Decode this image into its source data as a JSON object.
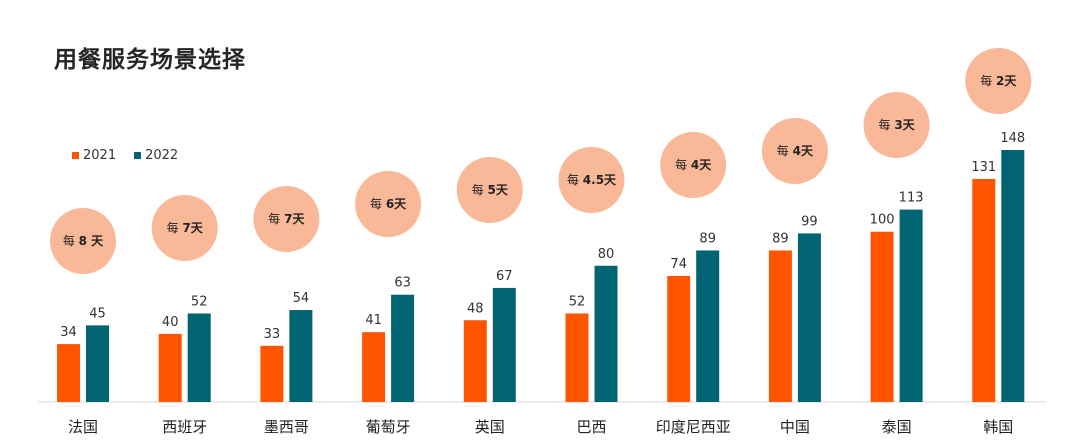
{
  "title": "用餐服务场景选择",
  "colors": {
    "s2021": "#FF5500",
    "s2022": "#006472",
    "bubble": "#F9B898",
    "axis": "#D9D9D9"
  },
  "chart_data": {
    "type": "bar",
    "categories": [
      "法国",
      "西班牙",
      "墨西哥",
      "葡萄牙",
      "英国",
      "巴西",
      "印度尼西亚",
      "中国",
      "泰国",
      "韩国"
    ],
    "series": [
      {
        "name": "2021",
        "values": [
          34,
          40,
          33,
          41,
          48,
          52,
          74,
          89,
          100,
          131
        ]
      },
      {
        "name": "2022",
        "values": [
          45,
          52,
          54,
          63,
          67,
          80,
          89,
          99,
          113,
          148
        ]
      }
    ],
    "annotations": [
      {
        "prefix": "每",
        "value": "8 天"
      },
      {
        "prefix": "每",
        "value": "7天"
      },
      {
        "prefix": "每",
        "value": "7天"
      },
      {
        "prefix": "每",
        "value": "6天"
      },
      {
        "prefix": "每",
        "value": "5天"
      },
      {
        "prefix": "每",
        "value": "4.5天"
      },
      {
        "prefix": "每",
        "value": "4天"
      },
      {
        "prefix": "每",
        "value": "4天"
      },
      {
        "prefix": "每",
        "value": "3天"
      },
      {
        "prefix": "每",
        "value": "2天"
      }
    ],
    "title": "用餐服务场景选择",
    "ylim": [
      0,
      148
    ],
    "legend_position": "top-left",
    "grid": false
  }
}
